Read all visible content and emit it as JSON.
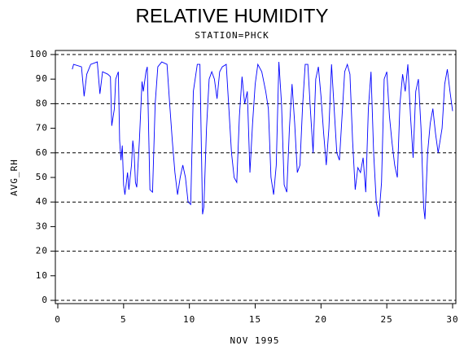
{
  "chart_data": {
    "type": "line",
    "title": "RELATIVE HUMIDITY",
    "subtitle": "STATION=PHCK",
    "x_label": "NOV 1995",
    "y_label": "AVG_RH",
    "xlim": [
      0,
      30
    ],
    "ylim": [
      0,
      100
    ],
    "xticks": [
      0,
      5,
      10,
      15,
      20,
      25,
      30
    ],
    "yticks": [
      0,
      10,
      20,
      30,
      40,
      50,
      60,
      70,
      80,
      90,
      100
    ],
    "reference_lines": [
      0,
      20,
      40,
      60,
      80,
      100
    ],
    "series": [
      {
        "name": "AVG_RH",
        "color": "#0000ff",
        "x": [
          1.1,
          1.2,
          1.8,
          2.0,
          2.2,
          2.5,
          3.0,
          3.2,
          3.4,
          3.8,
          4.0,
          4.1,
          4.3,
          4.4,
          4.6,
          4.7,
          4.8,
          4.9,
          5.0,
          5.1,
          5.3,
          5.4,
          5.6,
          5.7,
          5.8,
          5.9,
          6.0,
          6.2,
          6.4,
          6.5,
          6.7,
          6.8,
          7.0,
          7.2,
          7.4,
          7.6,
          7.9,
          8.3,
          8.5,
          8.7,
          8.9,
          9.1,
          9.3,
          9.5,
          9.7,
          9.9,
          10.1,
          10.3,
          10.6,
          10.8,
          11.0,
          11.1,
          11.3,
          11.5,
          11.7,
          11.9,
          12.1,
          12.3,
          12.5,
          12.8,
          13.0,
          13.2,
          13.4,
          13.6,
          13.8,
          14.0,
          14.2,
          14.4,
          14.6,
          14.8,
          15.0,
          15.2,
          15.5,
          15.8,
          16.0,
          16.2,
          16.4,
          16.6,
          16.8,
          17.0,
          17.2,
          17.4,
          17.6,
          17.8,
          18.0,
          18.2,
          18.4,
          18.6,
          18.8,
          19.0,
          19.2,
          19.4,
          19.6,
          19.8,
          20.0,
          20.2,
          20.4,
          20.6,
          20.8,
          21.0,
          21.2,
          21.4,
          21.6,
          21.8,
          22.0,
          22.2,
          22.4,
          22.6,
          22.8,
          23.0,
          23.2,
          23.4,
          23.6,
          23.8,
          24.0,
          24.2,
          24.4,
          24.6,
          24.8,
          25.0,
          25.2,
          25.4,
          25.6,
          25.8,
          26.0,
          26.2,
          26.4,
          26.6,
          26.8,
          27.0,
          27.2,
          27.4,
          27.6,
          27.8,
          27.9,
          28.1,
          28.3,
          28.5,
          28.7,
          28.9,
          29.2,
          29.4,
          29.6,
          29.8,
          30.0
        ],
        "values": [
          94,
          96,
          95,
          83,
          92,
          96,
          97,
          84,
          93,
          92,
          91,
          71,
          78,
          90,
          93,
          65,
          57,
          63,
          47,
          43,
          52,
          45,
          55,
          65,
          60,
          48,
          46,
          65,
          89,
          85,
          93,
          95,
          45,
          44,
          80,
          95,
          97,
          96,
          80,
          65,
          52,
          43,
          50,
          55,
          50,
          40,
          39,
          85,
          96,
          96,
          35,
          38,
          70,
          90,
          93,
          90,
          82,
          93,
          95,
          96,
          78,
          60,
          50,
          48,
          75,
          91,
          80,
          85,
          52,
          72,
          88,
          96,
          93,
          85,
          78,
          50,
          43,
          55,
          97,
          80,
          47,
          44,
          70,
          88,
          72,
          52,
          55,
          79,
          96,
          96,
          77,
          60,
          90,
          95,
          83,
          68,
          55,
          70,
          96,
          78,
          60,
          57,
          75,
          93,
          96,
          92,
          65,
          45,
          54,
          52,
          58,
          44,
          78,
          93,
          60,
          40,
          34,
          48,
          90,
          93,
          75,
          64,
          55,
          50,
          80,
          92,
          85,
          96,
          75,
          58,
          85,
          90,
          70,
          38,
          33,
          60,
          72,
          78,
          68,
          60,
          70,
          88,
          94,
          85,
          77
        ]
      }
    ]
  }
}
